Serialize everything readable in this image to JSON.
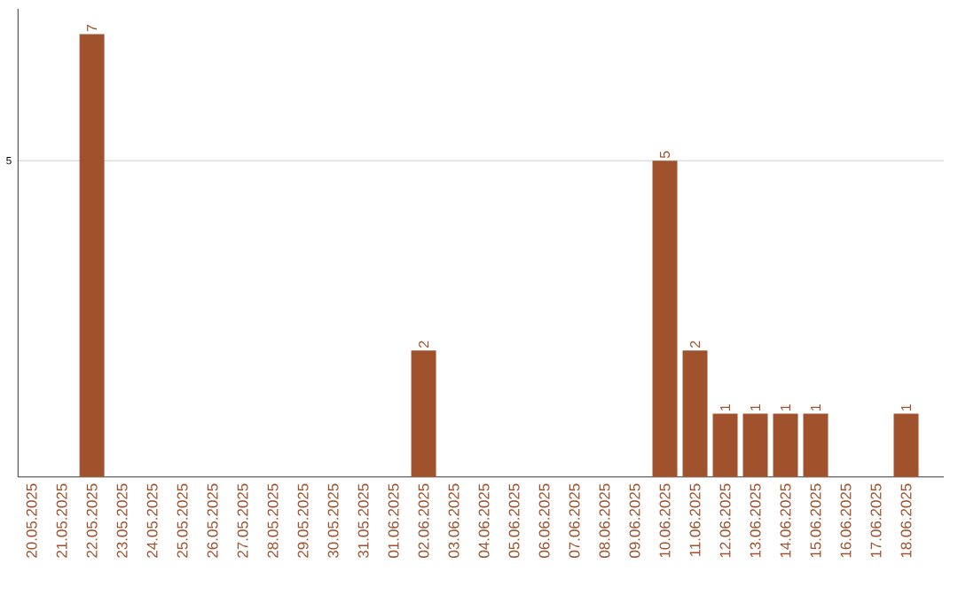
{
  "chart_data": {
    "type": "bar",
    "categories": [
      "20.05.2025",
      "21.05.2025",
      "22.05.2025",
      "23.05.2025",
      "24.05.2025",
      "25.05.2025",
      "26.05.2025",
      "27.05.2025",
      "28.05.2025",
      "29.05.2025",
      "30.05.2025",
      "31.05.2025",
      "01.06.2025",
      "02.06.2025",
      "03.06.2025",
      "04.06.2025",
      "05.06.2025",
      "06.06.2025",
      "07.06.2025",
      "08.06.2025",
      "09.06.2025",
      "10.06.2025",
      "11.06.2025",
      "12.06.2025",
      "13.06.2025",
      "14.06.2025",
      "15.06.2025",
      "16.06.2025",
      "17.06.2025",
      "18.06.2025"
    ],
    "values": [
      0,
      0,
      7,
      0,
      0,
      0,
      0,
      0,
      0,
      0,
      0,
      0,
      0,
      2,
      0,
      0,
      0,
      0,
      0,
      0,
      0,
      5,
      2,
      1,
      1,
      1,
      1,
      0,
      0,
      1
    ],
    "value_labels": [
      null,
      null,
      "7",
      null,
      null,
      null,
      null,
      null,
      null,
      null,
      null,
      null,
      null,
      "2",
      null,
      null,
      null,
      null,
      null,
      null,
      null,
      "5",
      "2",
      "1",
      "1",
      "1",
      "1",
      null,
      null,
      "1"
    ],
    "color": "#a0522d",
    "ylim": [
      0,
      7.4
    ],
    "yticks": [
      5
    ],
    "grid": "y"
  }
}
